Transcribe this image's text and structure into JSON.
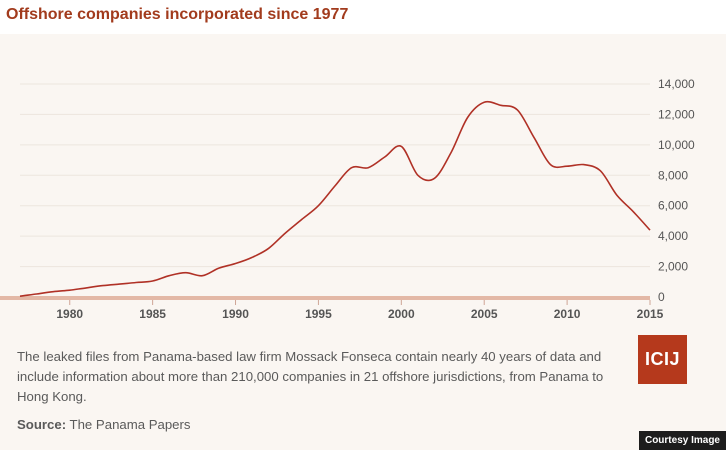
{
  "title": "Offshore companies incorporated since 1977",
  "caption": "The leaked files from Panama-based law firm Mossack Fonseca contain nearly 40 years of data and include information about more than 210,000 companies in 21 offshore jurisdictions, from Panama to Hong Kong.",
  "source_label": "Source:",
  "source_text": "The Panama Papers",
  "logo_text": "ICIJ",
  "courtesy": "Courtesy Image",
  "colors": {
    "title": "#a23b1d",
    "line": "#b03126",
    "axis": "#e3b8a6",
    "card_background": "#faf6f2",
    "logo": "#b5391c"
  },
  "chart_data": {
    "type": "line",
    "title": "Offshore companies incorporated since 1977",
    "xlabel": "",
    "ylabel": "",
    "xlim": [
      1977,
      2015
    ],
    "ylim": [
      0,
      14000
    ],
    "grid": true,
    "legend": "none",
    "x_ticks": [
      1980,
      1985,
      1990,
      1995,
      2000,
      2005,
      2010,
      2015
    ],
    "y_ticks": [
      0,
      2000,
      4000,
      6000,
      8000,
      10000,
      12000,
      14000
    ],
    "y_tick_labels": [
      "0",
      "2,000",
      "4,000",
      "6,000",
      "8,000",
      "10,000",
      "12,000",
      "14,000"
    ],
    "series": [
      {
        "x": [
          1977,
          1978,
          1979,
          1980,
          1981,
          1982,
          1983,
          1984,
          1985,
          1986,
          1987,
          1988,
          1989,
          1990,
          1991,
          1992,
          1993,
          1994,
          1995,
          1996,
          1997,
          1998,
          1999,
          2000,
          2001,
          2002,
          2003,
          2004,
          2005,
          2006,
          2007,
          2008,
          2009,
          2010,
          2011,
          2012,
          2013,
          2014,
          2015
        ],
        "y": [
          50,
          200,
          350,
          450,
          600,
          750,
          850,
          950,
          1050,
          1400,
          1600,
          1400,
          1900,
          2200,
          2600,
          3200,
          4200,
          5100,
          6000,
          7300,
          8500,
          8500,
          9200,
          9900,
          8000,
          7800,
          9500,
          11800,
          12800,
          12600,
          12300,
          10500,
          8700,
          8600,
          8700,
          8300,
          6700,
          5600,
          4400
        ]
      }
    ]
  }
}
